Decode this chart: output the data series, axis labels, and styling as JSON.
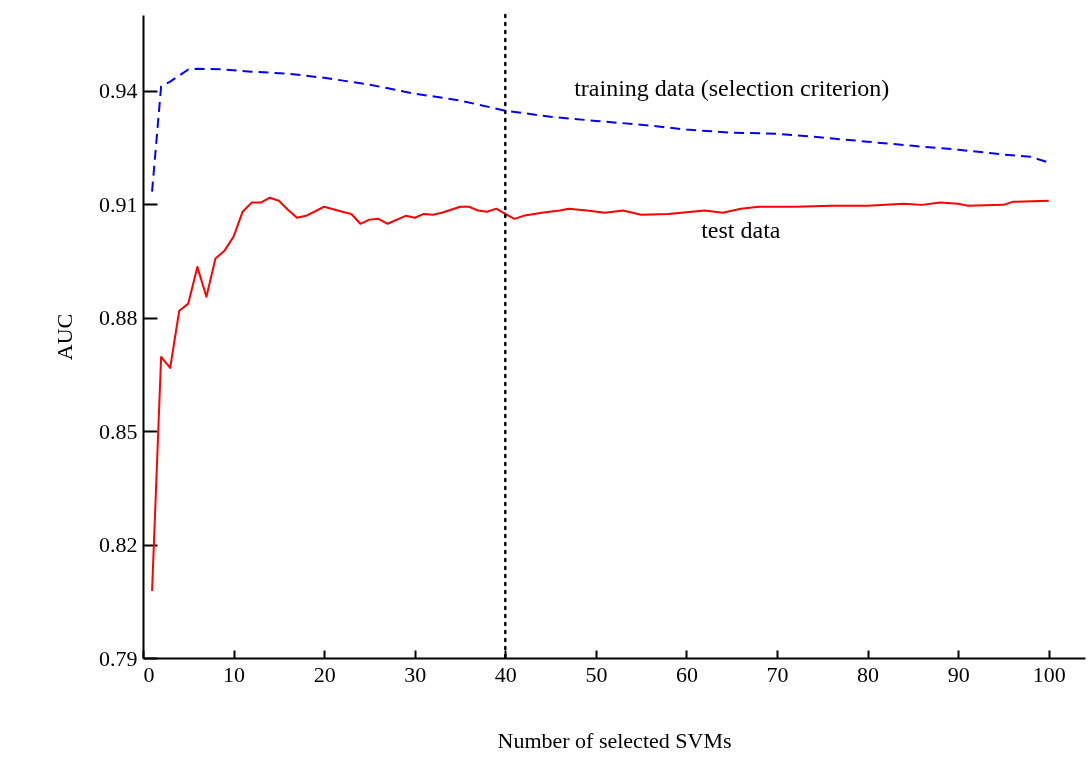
{
  "chart_data": {
    "type": "line",
    "xlabel": "Number of selected SVMs",
    "ylabel": "AUC",
    "xlim": [
      0,
      104
    ],
    "ylim": [
      0.79,
      0.96
    ],
    "xticks": [
      0,
      10,
      20,
      30,
      40,
      50,
      60,
      70,
      80,
      90,
      100
    ],
    "yticks": [
      0.79,
      0.82,
      0.85,
      0.88,
      0.91,
      0.94
    ],
    "grid": false,
    "legend": false,
    "marker": "none",
    "series": [
      {
        "name": "training data (selection criterion)",
        "color": "#0000ff",
        "line_style": "dashed",
        "x": [
          1,
          2,
          3,
          5,
          6,
          9,
          12,
          16,
          20,
          25,
          30,
          35,
          40,
          45,
          50,
          55,
          60,
          65,
          70,
          75,
          80,
          85,
          90,
          95,
          98,
          100
        ],
        "values": [
          0.9133,
          0.9411,
          0.9424,
          0.9456,
          0.9458,
          0.9456,
          0.945,
          0.9445,
          0.9434,
          0.9416,
          0.9392,
          0.9374,
          0.9347,
          0.9331,
          0.932,
          0.931,
          0.9297,
          0.9289,
          0.9286,
          0.9276,
          0.9265,
          0.9254,
          0.9244,
          0.9231,
          0.9225,
          0.921
        ]
      },
      {
        "name": "test data",
        "color": "#ff0000",
        "line_style": "solid",
        "x": [
          1,
          2,
          3,
          4,
          5,
          6,
          7,
          8,
          9,
          10,
          11,
          12,
          13,
          14,
          15,
          16,
          17,
          18,
          20,
          22,
          23,
          24,
          25,
          26,
          27,
          29,
          30,
          31,
          32,
          33,
          35,
          36,
          37,
          38,
          39,
          40,
          41,
          42,
          44,
          46,
          47,
          49,
          51,
          53,
          55,
          58,
          62,
          64,
          66,
          68,
          72,
          76,
          80,
          84,
          86,
          88,
          90,
          91,
          95,
          96,
          100
        ],
        "values": [
          0.8077,
          0.8696,
          0.8667,
          0.8818,
          0.8837,
          0.8934,
          0.8855,
          0.8956,
          0.8977,
          0.9014,
          0.908,
          0.9104,
          0.9104,
          0.9117,
          0.9109,
          0.9085,
          0.9064,
          0.9069,
          0.9093,
          0.908,
          0.9074,
          0.9048,
          0.9059,
          0.9061,
          0.9048,
          0.9069,
          0.9064,
          0.9074,
          0.9072,
          0.9077,
          0.9093,
          0.9093,
          0.9083,
          0.908,
          0.9088,
          0.9074,
          0.9061,
          0.9069,
          0.9077,
          0.9083,
          0.9088,
          0.9083,
          0.9077,
          0.9083,
          0.9072,
          0.9074,
          0.9083,
          0.9077,
          0.9088,
          0.9093,
          0.9093,
          0.9096,
          0.9096,
          0.9101,
          0.9098,
          0.9104,
          0.9101,
          0.9096,
          0.9098,
          0.9106,
          0.9109
        ]
      }
    ],
    "ref_lines": [
      {
        "axis": "x",
        "value": 40,
        "color": "#000000",
        "line_style": "dotted"
      }
    ]
  }
}
